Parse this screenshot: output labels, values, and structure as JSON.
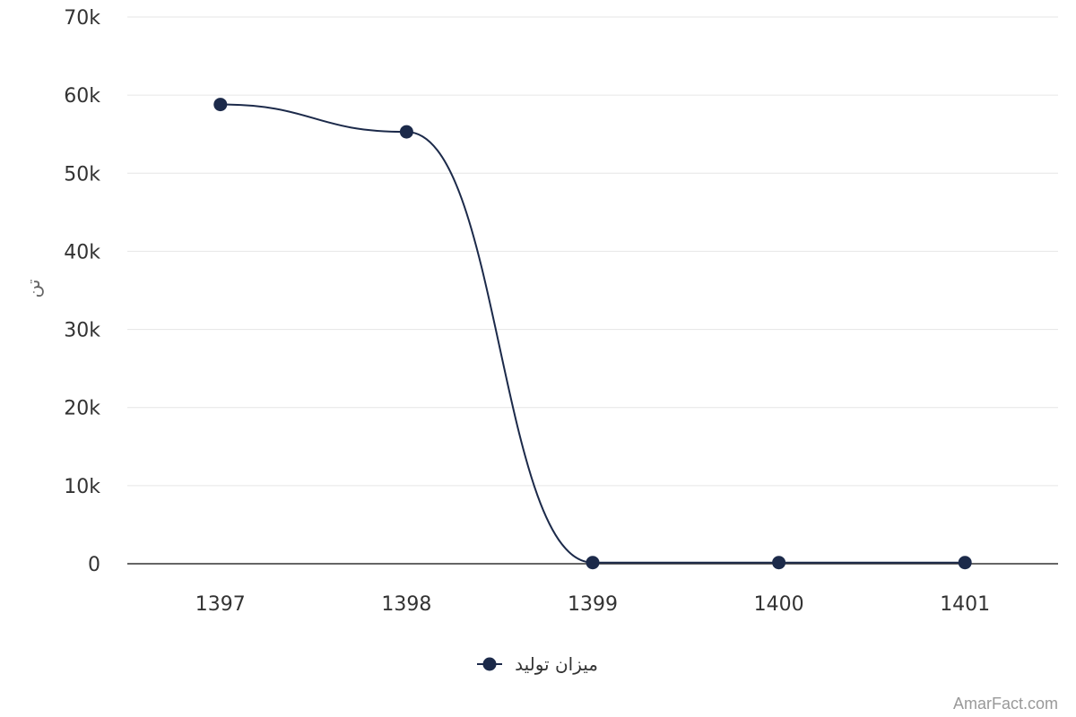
{
  "chart_data": {
    "type": "line",
    "categories": [
      "1397",
      "1398",
      "1399",
      "1400",
      "1401"
    ],
    "series": [
      {
        "name": "میزان تولید",
        "values": [
          58800,
          55300,
          150,
          150,
          150
        ],
        "color": "#1c2a4a"
      }
    ],
    "ylabel": "تن",
    "ylim": [
      0,
      70000
    ],
    "yticks": [
      "0",
      "10k",
      "20k",
      "30k",
      "40k",
      "50k",
      "60k",
      "70k"
    ],
    "grid": true,
    "legend": "bottom-center",
    "smooth": true
  },
  "credit": "AmarFact.com"
}
